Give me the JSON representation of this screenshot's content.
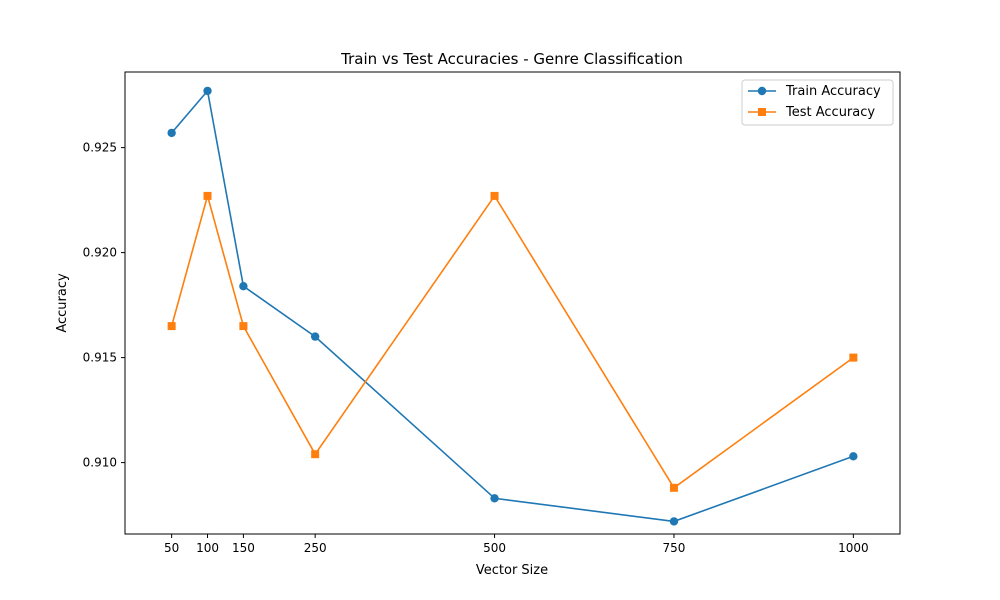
{
  "chart_data": {
    "type": "line",
    "title": "Train vs Test Accuracies - Genre Classification",
    "xlabel": "Vector Size",
    "ylabel": "Accuracy",
    "x": [
      50,
      100,
      150,
      250,
      500,
      750,
      1000
    ],
    "x_ticks": [
      "50",
      "100",
      "150",
      "250",
      "500",
      "750",
      "1000"
    ],
    "y_ticks": [
      "0.910",
      "0.915",
      "0.920",
      "0.925"
    ],
    "y_tick_values": [
      0.91,
      0.915,
      0.92,
      0.925
    ],
    "xlim": [
      -15,
      1065
    ],
    "ylim": [
      0.9066,
      0.9286
    ],
    "grid": false,
    "legend_position": "top-right",
    "series": [
      {
        "name": "Train Accuracy",
        "color": "#1f77b4",
        "marker": "circle",
        "values": [
          0.9257,
          0.9277,
          0.9184,
          0.916,
          0.9083,
          0.9072,
          0.9103
        ]
      },
      {
        "name": "Test Accuracy",
        "color": "#ff7f0e",
        "marker": "square",
        "values": [
          0.9165,
          0.9227,
          0.9165,
          0.9104,
          0.9227,
          0.9088,
          0.915
        ]
      }
    ]
  }
}
